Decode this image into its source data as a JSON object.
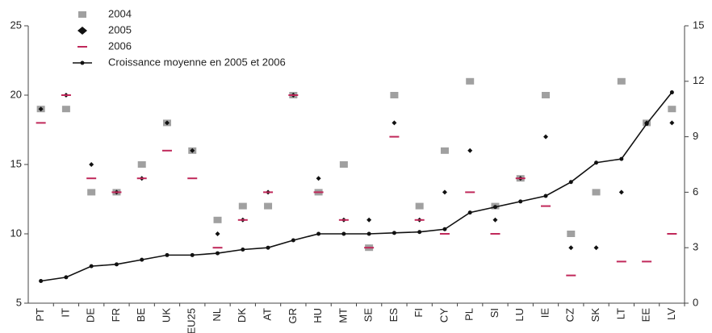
{
  "chart_data": {
    "type": "line",
    "categories": [
      "PT",
      "IT",
      "DE",
      "FR",
      "BE",
      "UK",
      "EU25",
      "NL",
      "DK",
      "AT",
      "GR",
      "HU",
      "MT",
      "SE",
      "ES",
      "FI",
      "CY",
      "PL",
      "SI",
      "LU",
      "IE",
      "CZ",
      "SK",
      "LT",
      "EE",
      "LV"
    ],
    "series": [
      {
        "name": "2004",
        "color": "#a0a0a0",
        "marker": "square",
        "values": [
          19,
          19,
          13,
          13,
          15,
          18,
          16,
          11,
          12,
          12,
          20,
          13,
          15,
          9,
          20,
          12,
          16,
          21,
          12,
          14,
          20,
          10,
          13,
          21,
          18,
          19
        ]
      },
      {
        "name": "2005",
        "color": "#111111",
        "marker": "diamond",
        "values": [
          19,
          20,
          15,
          13,
          14,
          18,
          16,
          10,
          11,
          13,
          20,
          14,
          11,
          11,
          18,
          11,
          13,
          16,
          11,
          14,
          17,
          9,
          9,
          13,
          18,
          18
        ]
      },
      {
        "name": "2006",
        "color": "#c0285a",
        "marker": "dash",
        "values": [
          18,
          20,
          14,
          13,
          14,
          16,
          14,
          9,
          11,
          13,
          20,
          13,
          11,
          9,
          17,
          11,
          10,
          13,
          10,
          14,
          12,
          7,
          null,
          8,
          8,
          10
        ]
      },
      {
        "name": "Croissance moyenne en 2005 et 2006",
        "color": "#111111",
        "marker": "line",
        "axis": "y2",
        "values": [
          1.2,
          1.4,
          2.0,
          2.1,
          2.35,
          2.6,
          2.6,
          2.7,
          2.9,
          3.0,
          3.4,
          3.75,
          3.75,
          3.75,
          3.8,
          3.85,
          4.0,
          4.9,
          5.2,
          5.5,
          5.8,
          6.55,
          7.6,
          7.8,
          9.7,
          11.4
        ]
      }
    ],
    "ylim": [
      5,
      25
    ],
    "yticks": [
      5,
      10,
      15,
      20,
      25
    ],
    "y2lim": [
      0,
      15
    ],
    "y2ticks": [
      0,
      3,
      6,
      9,
      12,
      15
    ],
    "legend": "top-left"
  }
}
